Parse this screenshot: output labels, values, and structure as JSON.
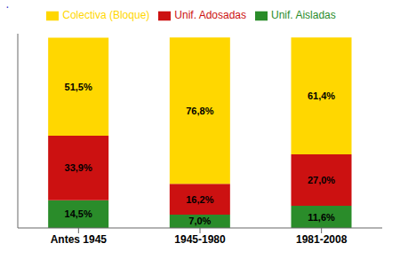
{
  "chart_data": {
    "type": "bar",
    "stacked": true,
    "categories": [
      "Antes 1945",
      "1945-1980",
      "1981-2008"
    ],
    "series": [
      {
        "name": "Unif. Aisladas",
        "color": "#2a8c2a",
        "values": [
          14.5,
          7.0,
          11.6
        ],
        "value_labels": [
          "14,5%",
          "7,0%",
          "11,6%"
        ]
      },
      {
        "name": "Unif. Adosadas",
        "color": "#cc1111",
        "values": [
          33.9,
          16.2,
          27.0
        ],
        "value_labels": [
          "33,9%",
          "16,2%",
          "27,0%"
        ]
      },
      {
        "name": "Colectiva (Bloque)",
        "color": "#ffd700",
        "values": [
          51.5,
          76.8,
          61.4
        ],
        "value_labels": [
          "51,5%",
          "76,8%",
          "61,4%"
        ]
      }
    ],
    "ylim": [
      0,
      102
    ],
    "data_labels": true,
    "tick_labels": "x",
    "legend": "top",
    "grid": false,
    "annotations": [
      "·"
    ]
  }
}
